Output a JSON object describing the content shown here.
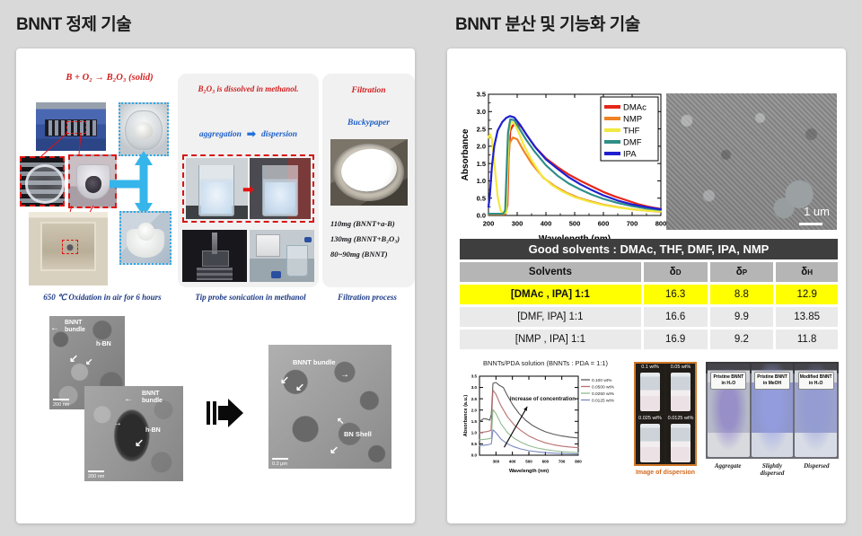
{
  "page": {
    "left_title": "BNNT 정제 기술",
    "right_title": "BNNT 분산 및 기능화 기술"
  },
  "purification": {
    "formula": "B + O₂ → B₂O₃ (solid)",
    "dissolve_heading": "B₂O₃  is dissolved in methanol.",
    "aggregation": "aggregation",
    "dispersion": "dispersion",
    "filtration": "Filtration",
    "buckypaper": "Buckypaper",
    "masses": [
      "110mg (BNNT+a-B)",
      "130mg (BNNT+B₂O₃)",
      "80~90mg  (BNNT)"
    ],
    "captions": [
      "650 ℃ Oxidation in air for 6 hours",
      "Tip probe sonication in methanol",
      "Filtration process"
    ],
    "tem": {
      "bundle": "BNNT bundle",
      "hbn": "h-BN",
      "bn_shell": "BN Shell",
      "scale_nm": "200 nm",
      "scale_um": "0.2 μm"
    }
  },
  "dispersion_panel": {
    "sem_scale": "1 um",
    "table": {
      "title": "Good solvents : DMAc, THF, DMF, IPA, NMP",
      "headers": [
        {
          "t": "Solvents",
          "s": ""
        },
        {
          "t": "δ",
          "s": "D"
        },
        {
          "t": "δ",
          "s": "P"
        },
        {
          "t": "δ",
          "s": "H"
        }
      ],
      "rows": [
        {
          "cells": [
            "[DMAc , IPA]  1:1",
            "16.3",
            "8.8",
            "12.9"
          ],
          "highlight": true
        },
        {
          "cells": [
            "[DMF, IPA] 1:1",
            "16.6",
            "9.9",
            "13.85"
          ],
          "highlight": false
        },
        {
          "cells": [
            "[NMP , IPA] 1:1",
            "16.9",
            "9.2",
            "11.8"
          ],
          "highlight": false
        }
      ],
      "highlight_color": "#ffff00"
    },
    "vial_grid": {
      "labels": [
        "0.1 wt%",
        "0.05 wt%",
        "0.025 wt%",
        "0.0125 wt%"
      ],
      "caption": "Image of dispersion"
    },
    "vials": [
      {
        "l1": "Pristine BNNT",
        "l2": "in H₂O",
        "caption": "Aggregate"
      },
      {
        "l1": "Pristine BNNT",
        "l2": "in MeOH",
        "caption": "Slightly dispersed"
      },
      {
        "l1": "Modified BNNT",
        "l2": "in H₂O",
        "caption": "Dispersed"
      }
    ]
  },
  "chart_data": [
    {
      "type": "line",
      "title": "",
      "xlabel": "Wavelength (nm)",
      "ylabel": "Absorbance",
      "xlim": [
        200,
        800
      ],
      "ylim": [
        0,
        3.5
      ],
      "xticks": [
        200,
        300,
        400,
        500,
        600,
        700,
        800
      ],
      "yticks": [
        0,
        0.5,
        1,
        1.5,
        2,
        2.5,
        3,
        3.5
      ],
      "legend": "inset",
      "series": [
        {
          "name": "DMAc",
          "color": "#e62619",
          "points": [
            [
              200,
              0.04
            ],
            [
              240,
              0.04
            ],
            [
              260,
              0.05
            ],
            [
              266,
              0.3
            ],
            [
              270,
              1.6
            ],
            [
              276,
              2.45
            ],
            [
              285,
              2.6
            ],
            [
              300,
              2.65
            ],
            [
              315,
              2.55
            ],
            [
              335,
              2.3
            ],
            [
              360,
              2.0
            ],
            [
              400,
              1.65
            ],
            [
              440,
              1.4
            ],
            [
              480,
              1.18
            ],
            [
              520,
              1.0
            ],
            [
              560,
              0.84
            ],
            [
              600,
              0.68
            ],
            [
              640,
              0.55
            ],
            [
              680,
              0.44
            ],
            [
              720,
              0.33
            ],
            [
              760,
              0.25
            ],
            [
              800,
              0.19
            ]
          ]
        },
        {
          "name": "NMP",
          "color": "#f08222",
          "points": [
            [
              200,
              0.03
            ],
            [
              255,
              0.03
            ],
            [
              263,
              0.2
            ],
            [
              268,
              1.5
            ],
            [
              274,
              2.1
            ],
            [
              285,
              2.25
            ],
            [
              300,
              2.2
            ],
            [
              320,
              1.9
            ],
            [
              350,
              1.5
            ],
            [
              390,
              1.1
            ],
            [
              430,
              0.85
            ],
            [
              470,
              0.66
            ],
            [
              510,
              0.52
            ],
            [
              550,
              0.42
            ],
            [
              600,
              0.31
            ],
            [
              650,
              0.24
            ],
            [
              700,
              0.18
            ],
            [
              750,
              0.14
            ],
            [
              800,
              0.11
            ]
          ]
        },
        {
          "name": "THF",
          "color": "#f2e93e",
          "points": [
            [
              200,
              2.25
            ],
            [
              206,
              2.35
            ],
            [
              212,
              2.2
            ],
            [
              222,
              1.4
            ],
            [
              232,
              0.55
            ],
            [
              242,
              0.15
            ],
            [
              252,
              0.06
            ],
            [
              262,
              0.08
            ],
            [
              266,
              1.2
            ],
            [
              270,
              2.3
            ],
            [
              278,
              2.72
            ],
            [
              290,
              2.65
            ],
            [
              305,
              2.4
            ],
            [
              325,
              2.0
            ],
            [
              350,
              1.6
            ],
            [
              385,
              1.15
            ],
            [
              420,
              0.88
            ],
            [
              460,
              0.68
            ],
            [
              500,
              0.53
            ],
            [
              550,
              0.4
            ],
            [
              600,
              0.3
            ],
            [
              650,
              0.23
            ],
            [
              700,
              0.18
            ],
            [
              750,
              0.14
            ],
            [
              800,
              0.12
            ]
          ]
        },
        {
          "name": "DMF",
          "color": "#2f8f88",
          "points": [
            [
              200,
              0.05
            ],
            [
              252,
              0.05
            ],
            [
              258,
              0.15
            ],
            [
              263,
              1.3
            ],
            [
              268,
              2.4
            ],
            [
              276,
              2.78
            ],
            [
              290,
              2.75
            ],
            [
              308,
              2.5
            ],
            [
              330,
              2.2
            ],
            [
              360,
              1.85
            ],
            [
              400,
              1.45
            ],
            [
              440,
              1.15
            ],
            [
              480,
              0.92
            ],
            [
              520,
              0.75
            ],
            [
              560,
              0.6
            ],
            [
              600,
              0.48
            ],
            [
              650,
              0.36
            ],
            [
              700,
              0.27
            ],
            [
              750,
              0.2
            ],
            [
              800,
              0.16
            ]
          ]
        },
        {
          "name": "IPA",
          "color": "#1f1fd0",
          "points": [
            [
              200,
              0.25
            ],
            [
              205,
              0.6
            ],
            [
              212,
              1.4
            ],
            [
              220,
              2.0
            ],
            [
              232,
              2.45
            ],
            [
              248,
              2.7
            ],
            [
              262,
              2.82
            ],
            [
              275,
              2.87
            ],
            [
              290,
              2.83
            ],
            [
              310,
              2.62
            ],
            [
              335,
              2.3
            ],
            [
              365,
              1.95
            ],
            [
              400,
              1.62
            ],
            [
              440,
              1.35
            ],
            [
              480,
              1.1
            ],
            [
              520,
              0.9
            ],
            [
              560,
              0.73
            ],
            [
              600,
              0.58
            ],
            [
              650,
              0.43
            ],
            [
              700,
              0.32
            ],
            [
              750,
              0.24
            ],
            [
              800,
              0.18
            ]
          ]
        }
      ]
    },
    {
      "type": "line",
      "title": "BNNTs/PDA solution (BNNTs : PDA = 1:1)",
      "xlabel": "Wavelength (nm)",
      "ylabel": "Absorbance (a.u.)",
      "xlim": [
        200,
        800
      ],
      "ylim": [
        0,
        3.5
      ],
      "xticks": [
        300,
        400,
        500,
        600,
        700,
        800
      ],
      "yticks": [
        0,
        0.5,
        1,
        1.5,
        2,
        2.5,
        3,
        3.5
      ],
      "legend": "right",
      "annotation": {
        "text": "Increase of concentration",
        "x1": 350,
        "y1": 0.35,
        "x2": 490,
        "y2": 2.15,
        "tx": 385,
        "ty": 2.42
      },
      "series": [
        {
          "name": "0.100 wt%",
          "color": "#5a5a5a",
          "points": [
            [
              200,
              1.5
            ],
            [
              225,
              1.62
            ],
            [
              245,
              1.6
            ],
            [
              262,
              1.55
            ],
            [
              272,
              1.8
            ],
            [
              282,
              3.18
            ],
            [
              300,
              3.22
            ],
            [
              320,
              3.1
            ],
            [
              345,
              3.0
            ],
            [
              365,
              2.7
            ],
            [
              400,
              2.25
            ],
            [
              440,
              1.85
            ],
            [
              480,
              1.55
            ],
            [
              520,
              1.33
            ],
            [
              560,
              1.17
            ],
            [
              600,
              1.04
            ],
            [
              650,
              0.93
            ],
            [
              700,
              0.85
            ],
            [
              750,
              0.8
            ],
            [
              800,
              0.76
            ]
          ]
        },
        {
          "name": "0.0500 wt%",
          "color": "#b87070",
          "points": [
            [
              200,
              1.0
            ],
            [
              250,
              1.05
            ],
            [
              270,
              1.1
            ],
            [
              282,
              2.88
            ],
            [
              300,
              2.7
            ],
            [
              330,
              2.2
            ],
            [
              370,
              1.7
            ],
            [
              410,
              1.35
            ],
            [
              450,
              1.1
            ],
            [
              500,
              0.85
            ],
            [
              550,
              0.68
            ],
            [
              600,
              0.55
            ],
            [
              650,
              0.46
            ],
            [
              700,
              0.4
            ],
            [
              750,
              0.36
            ],
            [
              800,
              0.33
            ]
          ]
        },
        {
          "name": "0.0250 wt%",
          "color": "#8fba8f",
          "points": [
            [
              200,
              0.68
            ],
            [
              250,
              0.72
            ],
            [
              272,
              0.75
            ],
            [
              282,
              2.02
            ],
            [
              300,
              1.85
            ],
            [
              330,
              1.4
            ],
            [
              370,
              1.0
            ],
            [
              410,
              0.75
            ],
            [
              450,
              0.58
            ],
            [
              500,
              0.42
            ],
            [
              550,
              0.32
            ],
            [
              600,
              0.25
            ],
            [
              650,
              0.2
            ],
            [
              700,
              0.16
            ],
            [
              750,
              0.13
            ],
            [
              800,
              0.11
            ]
          ]
        },
        {
          "name": "0.0125 wt%",
          "color": "#7a88c2",
          "points": [
            [
              200,
              0.42
            ],
            [
              250,
              0.46
            ],
            [
              272,
              0.5
            ],
            [
              282,
              1.12
            ],
            [
              300,
              1.0
            ],
            [
              330,
              0.72
            ],
            [
              370,
              0.5
            ],
            [
              410,
              0.37
            ],
            [
              450,
              0.28
            ],
            [
              500,
              0.2
            ],
            [
              550,
              0.15
            ],
            [
              600,
              0.11
            ],
            [
              650,
              0.09
            ],
            [
              700,
              0.07
            ],
            [
              750,
              0.06
            ],
            [
              800,
              0.05
            ]
          ]
        }
      ]
    }
  ]
}
